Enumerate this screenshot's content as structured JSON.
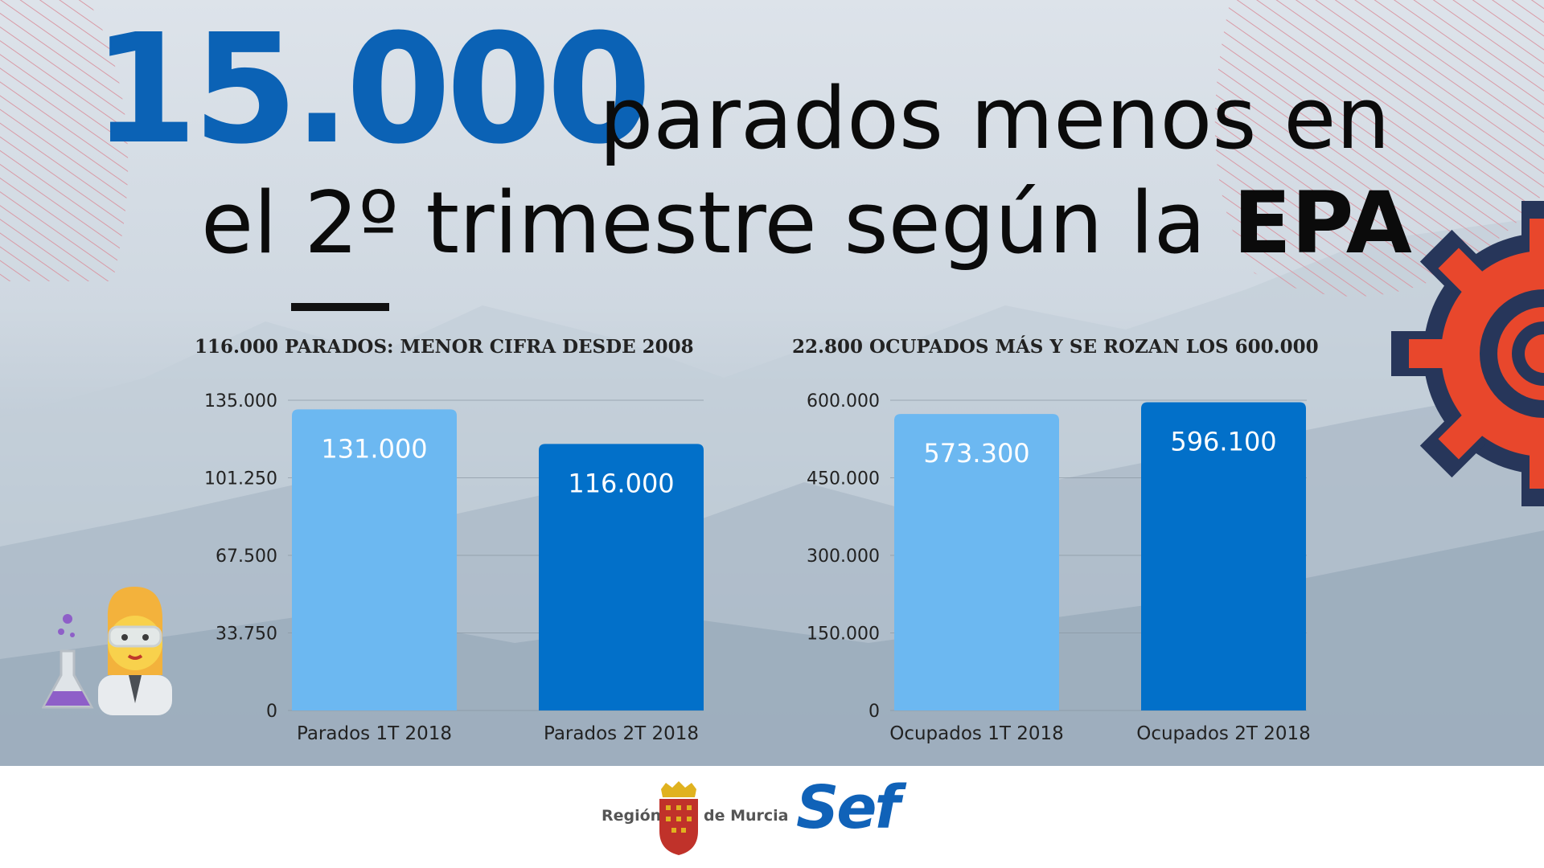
{
  "headline": {
    "number": "15.000",
    "line1": "parados menos en",
    "line2_prefix": "el 2º trimestre según la ",
    "line2_bold": "EPA"
  },
  "colors": {
    "accent_blue": "#0b62b5",
    "bar_light": "#6cb8f1",
    "bar_dark": "#0270c9",
    "gear_red": "#e8472c",
    "gear_navy": "#27365a"
  },
  "icons": [
    "scientist-emoji-icon",
    "gear-icon"
  ],
  "chart_data": [
    {
      "type": "bar",
      "title": "116.000 PARADOS: MENOR CIFRA DESDE 2008",
      "categories": [
        "Parados 1T 2018",
        "Parados 2T 2018"
      ],
      "values": [
        131000,
        116000
      ],
      "value_labels": [
        "131.000",
        "116.000"
      ],
      "ylim": [
        0,
        135000
      ],
      "yticks": [
        0,
        33750,
        67500,
        101250,
        135000
      ],
      "ytick_labels": [
        "0",
        "33.750",
        "67.500",
        "101.250",
        "135.000"
      ],
      "bar_colors": [
        "#6cb8f1",
        "#0270c9"
      ],
      "grid": true
    },
    {
      "type": "bar",
      "title": "22.800 OCUPADOS MÁS Y SE ROZAN LOS 600.000",
      "categories": [
        "Ocupados 1T 2018",
        "Ocupados 2T 2018"
      ],
      "values": [
        573300,
        596100
      ],
      "value_labels": [
        "573.300",
        "596.100"
      ],
      "ylim": [
        0,
        600000
      ],
      "yticks": [
        0,
        150000,
        300000,
        450000,
        600000
      ],
      "ytick_labels": [
        "0",
        "150.000",
        "300.000",
        "450.000",
        "600.000"
      ],
      "bar_colors": [
        "#6cb8f1",
        "#0270c9"
      ],
      "grid": true
    }
  ],
  "footer": {
    "region_left": "Región",
    "region_right": "de Murcia",
    "sef": "Sef"
  }
}
